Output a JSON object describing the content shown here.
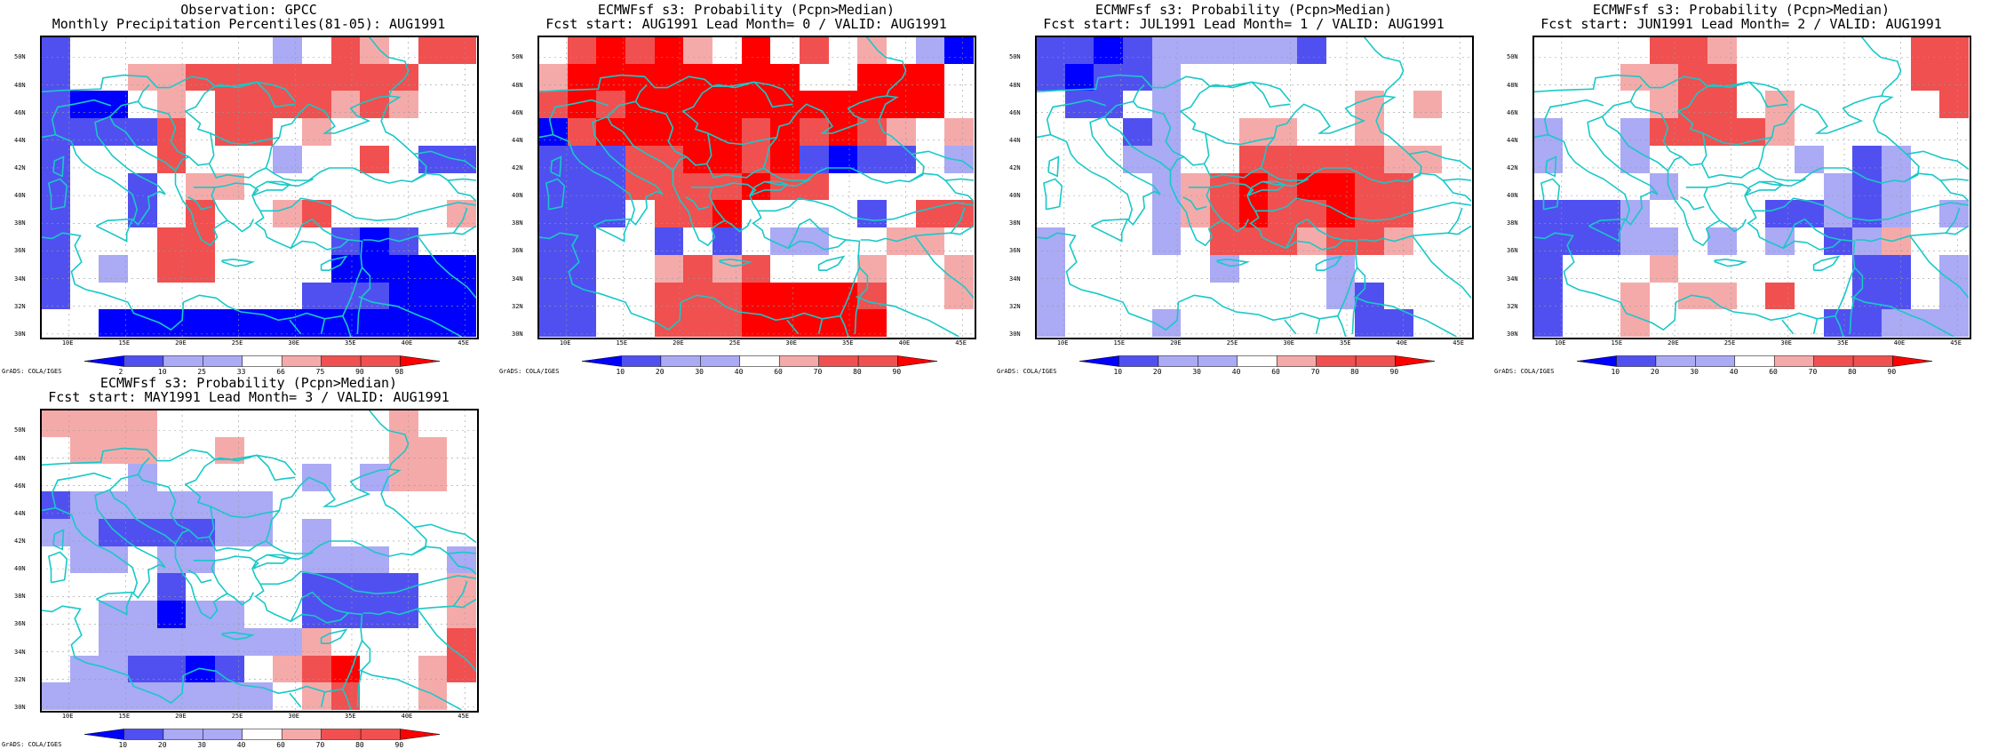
{
  "colors": {
    "bb": "#0000ff",
    "b": "#5050f0",
    "lb": "#aaaaf5",
    "w": "#ffffff",
    "lr": "#f5aaaa",
    "r": "#f05050",
    "rr": "#ff0000",
    "coast": "#19c8c8"
  },
  "axes": {
    "lat": [
      "50N",
      "48N",
      "46N",
      "44N",
      "42N",
      "40N",
      "38N",
      "36N",
      "34N",
      "32N",
      "30N"
    ],
    "lon": [
      "10E",
      "15E",
      "20E",
      "25E",
      "30E",
      "35E",
      "40E",
      "45E"
    ]
  },
  "grads_credit": "GrADS: COLA/IGES",
  "panels": [
    {
      "title1": "Observation: GPCC",
      "title2": "Monthly Precipitation Percentiles(81-05): AUG1991",
      "colorbar": [
        "2",
        "10",
        "25",
        "33",
        "66",
        "75",
        "90",
        "98"
      ],
      "grid": [
        [
          "b",
          "w",
          "w",
          "w",
          "w",
          "w",
          "w",
          "w",
          "lb",
          "w",
          "r",
          "lr",
          "w",
          "r",
          "r"
        ],
        [
          "b",
          "w",
          "w",
          "lr",
          "lr",
          "r",
          "r",
          "r",
          "r",
          "r",
          "r",
          "r",
          "r",
          "w",
          "w"
        ],
        [
          "b",
          "bb",
          "bb",
          "w",
          "lr",
          "w",
          "r",
          "r",
          "r",
          "r",
          "lr",
          "r",
          "lr",
          "w",
          "w"
        ],
        [
          "b",
          "b",
          "b",
          "b",
          "r",
          "w",
          "r",
          "r",
          "w",
          "lr",
          "w",
          "w",
          "w",
          "w",
          "w"
        ],
        [
          "b",
          "w",
          "w",
          "w",
          "r",
          "w",
          "w",
          "w",
          "lb",
          "w",
          "w",
          "r",
          "w",
          "b",
          "b"
        ],
        [
          "b",
          "w",
          "w",
          "b",
          "w",
          "lr",
          "lr",
          "w",
          "w",
          "w",
          "w",
          "w",
          "w",
          "w",
          "w"
        ],
        [
          "b",
          "w",
          "w",
          "b",
          "w",
          "r",
          "w",
          "w",
          "lr",
          "r",
          "w",
          "w",
          "w",
          "w",
          "lr"
        ],
        [
          "b",
          "w",
          "w",
          "w",
          "r",
          "r",
          "w",
          "w",
          "w",
          "w",
          "b",
          "bb",
          "b",
          "w",
          "w"
        ],
        [
          "b",
          "w",
          "lb",
          "w",
          "r",
          "r",
          "w",
          "w",
          "w",
          "w",
          "bb",
          "bb",
          "bb",
          "bb",
          "bb"
        ],
        [
          "b",
          "w",
          "w",
          "w",
          "w",
          "w",
          "w",
          "w",
          "w",
          "b",
          "b",
          "b",
          "bb",
          "bb",
          "bb"
        ],
        [
          "w",
          "w",
          "bb",
          "bb",
          "bb",
          "bb",
          "bb",
          "bb",
          "bb",
          "bb",
          "bb",
          "bb",
          "bb",
          "bb",
          "bb"
        ]
      ]
    },
    {
      "title1": "ECMWFsf s3: Probability (Pcpn>Median)",
      "title2": "Fcst start: AUG1991  Lead Month= 0 / VALID: AUG1991",
      "colorbar": [
        "10",
        "20",
        "30",
        "40",
        "60",
        "70",
        "80",
        "90"
      ],
      "grid": [
        [
          "w",
          "r",
          "rr",
          "r",
          "rr",
          "lr",
          "w",
          "rr",
          "w",
          "r",
          "w",
          "lr",
          "w",
          "lb",
          "bb"
        ],
        [
          "lr",
          "rr",
          "rr",
          "rr",
          "rr",
          "rr",
          "rr",
          "rr",
          "rr",
          "w",
          "w",
          "rr",
          "rr",
          "rr",
          "w"
        ],
        [
          "r",
          "rr",
          "r",
          "rr",
          "rr",
          "rr",
          "rr",
          "rr",
          "rr",
          "rr",
          "rr",
          "rr",
          "rr",
          "rr",
          "w"
        ],
        [
          "bb",
          "r",
          "rr",
          "rr",
          "rr",
          "rr",
          "rr",
          "r",
          "rr",
          "r",
          "rr",
          "r",
          "lr",
          "w",
          "lr"
        ],
        [
          "b",
          "b",
          "b",
          "r",
          "r",
          "rr",
          "rr",
          "r",
          "rr",
          "b",
          "bb",
          "b",
          "b",
          "w",
          "lb"
        ],
        [
          "b",
          "b",
          "b",
          "r",
          "r",
          "r",
          "r",
          "rr",
          "r",
          "r",
          "w",
          "w",
          "w",
          "w",
          "w"
        ],
        [
          "b",
          "b",
          "b",
          "w",
          "r",
          "r",
          "rr",
          "w",
          "w",
          "w",
          "w",
          "b",
          "w",
          "r",
          "r"
        ],
        [
          "b",
          "b",
          "w",
          "w",
          "b",
          "w",
          "b",
          "w",
          "lb",
          "lb",
          "w",
          "w",
          "lr",
          "lr",
          "w"
        ],
        [
          "b",
          "b",
          "w",
          "w",
          "lr",
          "r",
          "lr",
          "r",
          "w",
          "w",
          "w",
          "lr",
          "w",
          "w",
          "lr"
        ],
        [
          "b",
          "b",
          "w",
          "w",
          "r",
          "r",
          "r",
          "rr",
          "rr",
          "rr",
          "rr",
          "r",
          "w",
          "w",
          "lr"
        ],
        [
          "b",
          "b",
          "w",
          "w",
          "r",
          "r",
          "r",
          "rr",
          "rr",
          "rr",
          "rr",
          "rr",
          "w",
          "w",
          "w"
        ]
      ]
    },
    {
      "title1": "ECMWFsf s3: Probability (Pcpn>Median)",
      "title2": "Fcst start: JUL1991  Lead Month= 1 / VALID: AUG1991",
      "colorbar": [
        "10",
        "20",
        "30",
        "40",
        "60",
        "70",
        "80",
        "90"
      ],
      "grid": [
        [
          "b",
          "b",
          "bb",
          "b",
          "lb",
          "lb",
          "lb",
          "lb",
          "lb",
          "b",
          "w",
          "w",
          "w",
          "w",
          "w"
        ],
        [
          "b",
          "bb",
          "b",
          "b",
          "lb",
          "w",
          "w",
          "w",
          "w",
          "w",
          "w",
          "w",
          "w",
          "w",
          "w"
        ],
        [
          "w",
          "b",
          "b",
          "w",
          "lb",
          "w",
          "w",
          "w",
          "w",
          "w",
          "w",
          "lr",
          "w",
          "lr",
          "w"
        ],
        [
          "w",
          "w",
          "w",
          "b",
          "lb",
          "w",
          "w",
          "lr",
          "lr",
          "w",
          "w",
          "lr",
          "w",
          "w",
          "w"
        ],
        [
          "w",
          "w",
          "w",
          "lb",
          "lb",
          "w",
          "w",
          "r",
          "r",
          "r",
          "r",
          "r",
          "lr",
          "lr",
          "w"
        ],
        [
          "w",
          "w",
          "w",
          "w",
          "lb",
          "lr",
          "r",
          "rr",
          "r",
          "rr",
          "rr",
          "r",
          "r",
          "w",
          "w"
        ],
        [
          "w",
          "w",
          "w",
          "w",
          "lb",
          "lr",
          "r",
          "rr",
          "r",
          "r",
          "rr",
          "r",
          "r",
          "w",
          "w"
        ],
        [
          "lb",
          "w",
          "w",
          "w",
          "lb",
          "w",
          "r",
          "r",
          "r",
          "lr",
          "r",
          "r",
          "lr",
          "w",
          "w"
        ],
        [
          "lb",
          "w",
          "w",
          "w",
          "w",
          "w",
          "lb",
          "w",
          "w",
          "w",
          "lb",
          "w",
          "w",
          "w",
          "w"
        ],
        [
          "lb",
          "w",
          "w",
          "w",
          "w",
          "w",
          "w",
          "w",
          "w",
          "w",
          "lb",
          "b",
          "w",
          "w",
          "w"
        ],
        [
          "lb",
          "w",
          "w",
          "w",
          "lb",
          "w",
          "w",
          "w",
          "w",
          "w",
          "w",
          "b",
          "b",
          "w",
          "w"
        ]
      ]
    },
    {
      "title1": "ECMWFsf s3: Probability (Pcpn>Median)",
      "title2": "Fcst start: JUN1991  Lead Month= 2 / VALID: AUG1991",
      "colorbar": [
        "10",
        "20",
        "30",
        "40",
        "60",
        "70",
        "80",
        "90"
      ],
      "grid": [
        [
          "w",
          "w",
          "w",
          "w",
          "r",
          "r",
          "lr",
          "w",
          "w",
          "w",
          "w",
          "w",
          "w",
          "r",
          "r"
        ],
        [
          "w",
          "w",
          "w",
          "lr",
          "lr",
          "r",
          "r",
          "w",
          "w",
          "w",
          "w",
          "w",
          "w",
          "r",
          "r"
        ],
        [
          "w",
          "w",
          "w",
          "w",
          "lr",
          "r",
          "r",
          "w",
          "lr",
          "w",
          "w",
          "w",
          "w",
          "w",
          "r"
        ],
        [
          "lb",
          "w",
          "w",
          "lb",
          "r",
          "r",
          "r",
          "r",
          "lr",
          "w",
          "w",
          "w",
          "w",
          "w",
          "w"
        ],
        [
          "lb",
          "w",
          "w",
          "lb",
          "w",
          "w",
          "w",
          "w",
          "w",
          "lb",
          "w",
          "b",
          "lb",
          "w",
          "w"
        ],
        [
          "w",
          "w",
          "w",
          "w",
          "lb",
          "w",
          "w",
          "w",
          "w",
          "w",
          "lb",
          "b",
          "lb",
          "w",
          "w"
        ],
        [
          "b",
          "b",
          "b",
          "lb",
          "w",
          "w",
          "w",
          "w",
          "b",
          "b",
          "lb",
          "b",
          "lb",
          "w",
          "lb"
        ],
        [
          "b",
          "b",
          "b",
          "lb",
          "lb",
          "w",
          "lb",
          "w",
          "lb",
          "w",
          "b",
          "lb",
          "lr",
          "w",
          "w"
        ],
        [
          "b",
          "w",
          "w",
          "w",
          "lr",
          "w",
          "w",
          "w",
          "w",
          "w",
          "w",
          "b",
          "b",
          "w",
          "lb"
        ],
        [
          "b",
          "w",
          "w",
          "lr",
          "w",
          "lr",
          "lr",
          "w",
          "r",
          "w",
          "w",
          "b",
          "b",
          "w",
          "lb"
        ],
        [
          "b",
          "w",
          "w",
          "lr",
          "w",
          "w",
          "w",
          "w",
          "w",
          "w",
          "b",
          "b",
          "lb",
          "lb",
          "lb"
        ]
      ]
    },
    {
      "title1": "ECMWFsf s3: Probability (Pcpn>Median)",
      "title2": "Fcst start: MAY1991  Lead Month= 3 / VALID: AUG1991",
      "colorbar": [
        "10",
        "20",
        "30",
        "40",
        "60",
        "70",
        "80",
        "90"
      ],
      "grid": [
        [
          "lr",
          "lr",
          "lr",
          "lr",
          "w",
          "w",
          "w",
          "w",
          "w",
          "w",
          "w",
          "w",
          "lr",
          "w",
          "w"
        ],
        [
          "w",
          "lr",
          "lr",
          "lr",
          "w",
          "w",
          "lr",
          "w",
          "w",
          "w",
          "w",
          "w",
          "lr",
          "lr",
          "w"
        ],
        [
          "w",
          "w",
          "w",
          "lb",
          "w",
          "w",
          "w",
          "w",
          "w",
          "lb",
          "w",
          "lb",
          "lr",
          "lr",
          "w"
        ],
        [
          "b",
          "lb",
          "lb",
          "lb",
          "lb",
          "lb",
          "lb",
          "lb",
          "w",
          "w",
          "w",
          "w",
          "w",
          "w",
          "w"
        ],
        [
          "lb",
          "lb",
          "b",
          "b",
          "b",
          "b",
          "lb",
          "lb",
          "w",
          "lb",
          "w",
          "w",
          "w",
          "w",
          "w"
        ],
        [
          "w",
          "lb",
          "lb",
          "w",
          "lb",
          "lb",
          "w",
          "w",
          "w",
          "lb",
          "lb",
          "lb",
          "w",
          "w",
          "lb"
        ],
        [
          "w",
          "w",
          "w",
          "w",
          "b",
          "w",
          "w",
          "w",
          "w",
          "b",
          "b",
          "b",
          "b",
          "w",
          "lr"
        ],
        [
          "w",
          "w",
          "lb",
          "lb",
          "bb",
          "lb",
          "lb",
          "w",
          "w",
          "b",
          "b",
          "b",
          "b",
          "w",
          "lr"
        ],
        [
          "w",
          "w",
          "lb",
          "lb",
          "lb",
          "lb",
          "lb",
          "lb",
          "lb",
          "lr",
          "w",
          "w",
          "w",
          "w",
          "r"
        ],
        [
          "w",
          "lb",
          "lb",
          "b",
          "b",
          "bb",
          "b",
          "w",
          "lr",
          "r",
          "rr",
          "w",
          "w",
          "lr",
          "r"
        ],
        [
          "lb",
          "lb",
          "lb",
          "lb",
          "lb",
          "lb",
          "lb",
          "lb",
          "w",
          "lr",
          "r",
          "w",
          "w",
          "lr",
          "w"
        ]
      ]
    }
  ]
}
